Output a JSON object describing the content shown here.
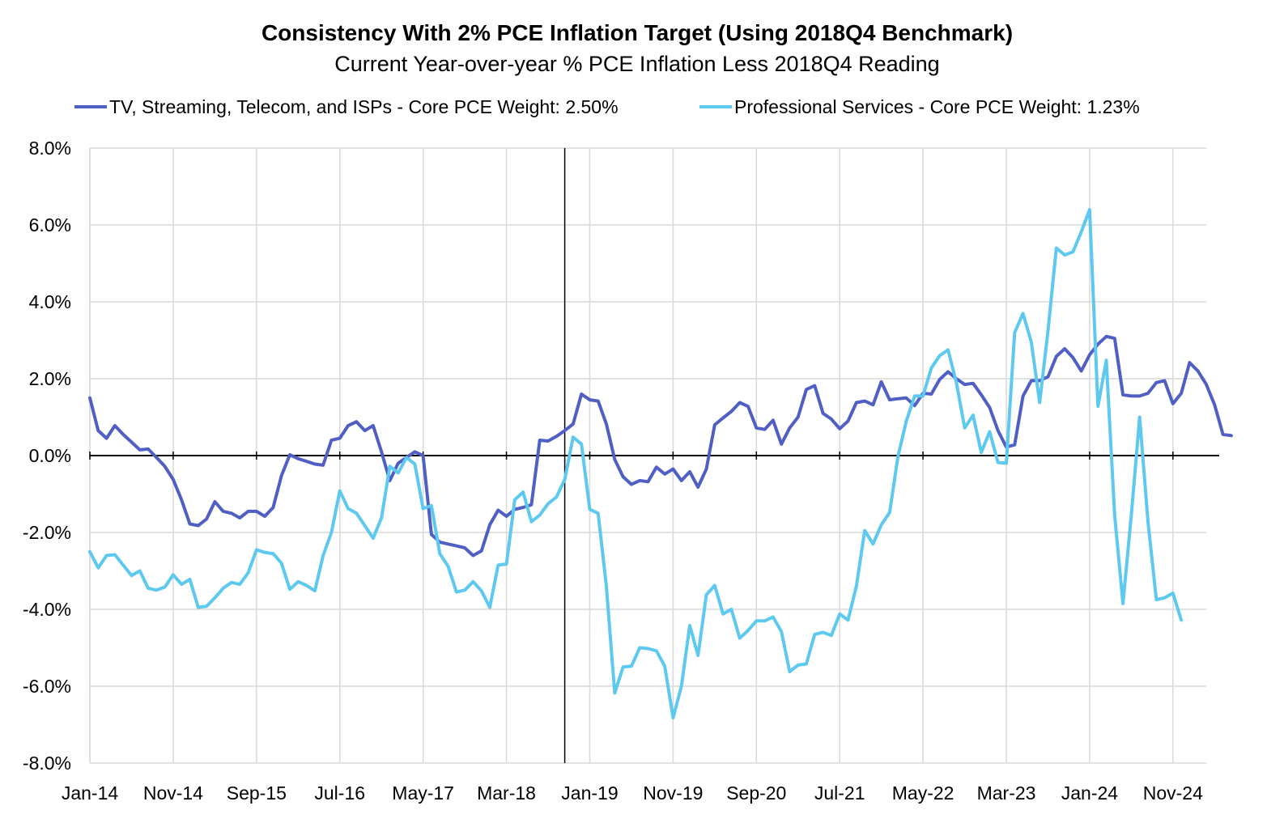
{
  "chart_data": {
    "type": "line",
    "title": "Consistency With 2% PCE Inflation Target (Using 2018Q4 Benchmark)",
    "subtitle": "Current Year-over-year % PCE Inflation Less 2018Q4 Reading",
    "x_tick_labels": [
      "Jan-14",
      "Nov-14",
      "Sep-15",
      "Jul-16",
      "May-17",
      "Mar-18",
      "Jan-19",
      "Nov-19",
      "Sep-20",
      "Jul-21",
      "May-22",
      "Mar-23",
      "Jan-24",
      "Nov-24"
    ],
    "x_range": [
      "Jan-14",
      "Mar-25"
    ],
    "y_tick_labels": [
      "8.0%",
      "6.0%",
      "4.0%",
      "2.0%",
      "0.0%",
      "-2.0%",
      "-4.0%",
      "-6.0%",
      "-8.0%"
    ],
    "y_range": [
      -8,
      8
    ],
    "grid": "vertical gridlines at x tick labels; horizontal gridlines at y ticks",
    "reference_lines": {
      "vertical_at": "Oct-18",
      "horizontal_at": 0
    },
    "legend_position": "top",
    "series": [
      {
        "name": "TV, Streaming, Telecom, and ISPs - Core PCE Weight: 2.50%",
        "color": "#4f5fc4",
        "start": "Jan-14",
        "values": [
          1.5,
          0.65,
          0.45,
          0.78,
          0.55,
          0.35,
          0.15,
          0.17,
          -0.05,
          -0.28,
          -0.62,
          -1.15,
          -1.78,
          -1.82,
          -1.65,
          -1.2,
          -1.45,
          -1.5,
          -1.62,
          -1.45,
          -1.45,
          -1.58,
          -1.35,
          -0.52,
          0.02,
          -0.08,
          -0.15,
          -0.22,
          -0.25,
          0.4,
          0.45,
          0.78,
          0.88,
          0.65,
          0.78,
          0.1,
          -0.65,
          -0.2,
          -0.05,
          0.1,
          0.0,
          -2.05,
          -2.25,
          -2.3,
          -2.35,
          -2.4,
          -2.6,
          -2.48,
          -1.8,
          -1.42,
          -1.58,
          -1.4,
          -1.35,
          -1.28,
          0.4,
          0.38,
          0.5,
          0.65,
          0.82,
          1.6,
          1.45,
          1.42,
          0.82,
          -0.1,
          -0.55,
          -0.75,
          -0.65,
          -0.68,
          -0.3,
          -0.48,
          -0.35,
          -0.65,
          -0.42,
          -0.82,
          -0.35,
          0.8,
          0.98,
          1.15,
          1.38,
          1.28,
          0.72,
          0.68,
          0.92,
          0.3,
          0.72,
          1.0,
          1.72,
          1.82,
          1.1,
          0.95,
          0.7,
          0.9,
          1.38,
          1.42,
          1.32,
          1.92,
          1.45,
          1.48,
          1.5,
          1.3,
          1.62,
          1.6,
          1.98,
          2.18,
          2.0,
          1.85,
          1.88,
          1.58,
          1.25,
          0.65,
          0.22,
          0.28,
          1.55,
          1.95,
          1.95,
          2.05,
          2.58,
          2.78,
          2.55,
          2.2,
          2.62,
          2.9,
          3.1,
          3.05,
          1.58,
          1.55,
          1.55,
          1.62,
          1.9,
          1.95,
          1.35,
          1.62,
          2.42,
          2.2,
          1.85,
          1.32,
          0.55,
          0.52
        ]
      },
      {
        "name": "Professional Services - Core PCE Weight: 1.23%",
        "color": "#5ec9ee",
        "start": "Jan-14",
        "values": [
          -2.5,
          -2.92,
          -2.6,
          -2.58,
          -2.85,
          -3.12,
          -3.0,
          -3.45,
          -3.5,
          -3.42,
          -3.1,
          -3.35,
          -3.22,
          -3.95,
          -3.92,
          -3.7,
          -3.45,
          -3.3,
          -3.35,
          -3.05,
          -2.45,
          -2.52,
          -2.55,
          -2.8,
          -3.48,
          -3.28,
          -3.38,
          -3.52,
          -2.6,
          -2.0,
          -0.92,
          -1.38,
          -1.5,
          -1.82,
          -2.15,
          -1.62,
          -0.28,
          -0.45,
          -0.05,
          -0.22,
          -1.38,
          -1.3,
          -2.55,
          -2.88,
          -3.55,
          -3.5,
          -3.28,
          -3.52,
          -3.95,
          -2.85,
          -2.82,
          -1.15,
          -0.95,
          -1.72,
          -1.55,
          -1.25,
          -1.08,
          -0.62,
          0.48,
          0.3,
          -1.4,
          -1.5,
          -3.4,
          -6.18,
          -5.5,
          -5.48,
          -5.0,
          -5.02,
          -5.08,
          -5.48,
          -6.82,
          -6.0,
          -4.42,
          -5.2,
          -3.62,
          -3.38,
          -4.12,
          -4.0,
          -4.75,
          -4.55,
          -4.3,
          -4.3,
          -4.2,
          -4.58,
          -5.62,
          -5.45,
          -5.42,
          -4.65,
          -4.6,
          -4.68,
          -4.12,
          -4.28,
          -3.4,
          -1.95,
          -2.3,
          -1.8,
          -1.48,
          -0.02,
          0.9,
          1.55,
          1.55,
          2.28,
          2.6,
          2.75,
          1.9,
          0.72,
          1.05,
          0.08,
          0.62,
          -0.18,
          -0.2,
          3.2,
          3.7,
          2.95,
          1.38,
          3.25,
          5.4,
          5.22,
          5.3,
          5.82,
          6.4,
          1.28,
          2.48,
          -1.55,
          -3.85,
          -1.55,
          1.0,
          -1.72,
          -3.75,
          -3.7,
          -3.58,
          -4.28
        ]
      }
    ]
  }
}
